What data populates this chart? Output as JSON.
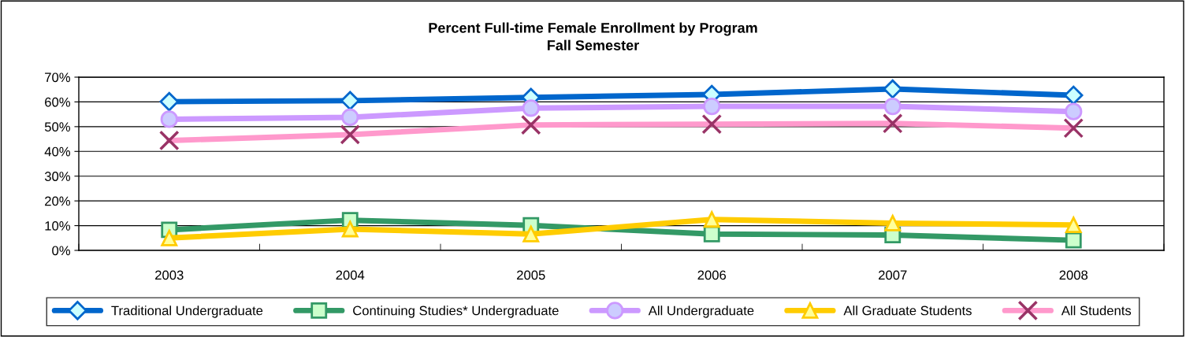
{
  "chart_data": {
    "type": "line",
    "title": "Percent Full-time Female Enrollment by Program\nFall Semester",
    "categories": [
      "2003",
      "2004",
      "2005",
      "2006",
      "2007",
      "2008"
    ],
    "series": [
      {
        "name": "Traditional Undergraduate",
        "color": "#0066cc",
        "marker": "diamond",
        "values": [
          60.1,
          60.5,
          61.8,
          63.0,
          65.2,
          62.7
        ]
      },
      {
        "name": "Continuing Studies* Undergraduate",
        "color": "#339966",
        "marker": "square",
        "values": [
          8.3,
          12.2,
          10.1,
          6.6,
          6.2,
          4.1
        ]
      },
      {
        "name": "All Undergraduate",
        "color": "#cc99ff",
        "marker": "circle",
        "values": [
          53.0,
          53.8,
          57.5,
          58.2,
          58.2,
          56.1
        ]
      },
      {
        "name": "All Graduate Students",
        "color": "#ffcc00",
        "marker": "triangle",
        "values": [
          5.0,
          8.6,
          6.6,
          12.5,
          11.0,
          10.3
        ]
      },
      {
        "name": "All Students",
        "color": "#ff99cc",
        "marker": "cross",
        "values": [
          44.4,
          46.8,
          50.7,
          51.0,
          51.3,
          49.4
        ]
      }
    ],
    "ylim": [
      0,
      70
    ],
    "yticks": [
      {
        "value": 0,
        "label": "0%"
      },
      {
        "value": 10,
        "label": "10%"
      },
      {
        "value": 20,
        "label": "20%"
      },
      {
        "value": 30,
        "label": "30%"
      },
      {
        "value": 40,
        "label": "40%"
      },
      {
        "value": 50,
        "label": "50%"
      },
      {
        "value": 60,
        "label": "60%"
      },
      {
        "value": 70,
        "label": "70%"
      }
    ],
    "grid": "y",
    "legend": "bottom",
    "line_style": "solid"
  }
}
